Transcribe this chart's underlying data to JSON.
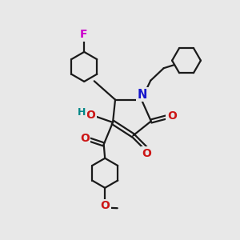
{
  "bg_color": "#e8e8e8",
  "bond_color": "#1a1a1a",
  "N_color": "#1515cc",
  "O_color": "#cc1515",
  "F_color": "#cc00cc",
  "H_color": "#008888",
  "lw": 1.6,
  "figsize": [
    3.0,
    3.0
  ],
  "dpi": 100,
  "xlim": [
    0,
    10
  ],
  "ylim": [
    0,
    10
  ]
}
